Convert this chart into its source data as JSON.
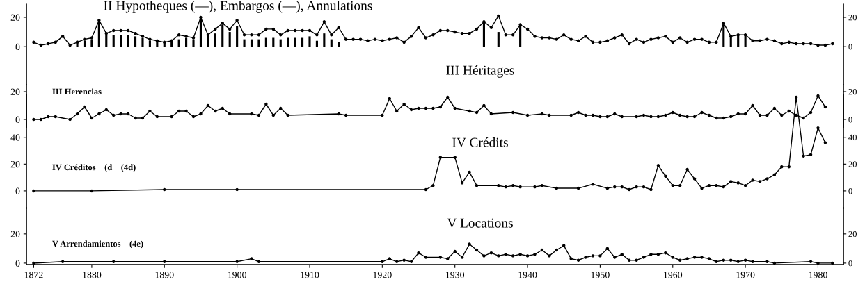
{
  "chart_data": [
    {
      "type": "line",
      "title": "II Hypotheques (—), Embargos (—), Annulations",
      "marker": "circle",
      "tick_labels": "y",
      "xlim": [
        1871,
        1983.5
      ],
      "xticks": [
        1872,
        1880,
        1890,
        1900,
        1910,
        1920,
        1930,
        1940,
        1950,
        1960,
        1970,
        1980
      ],
      "ylim": [
        -26,
        29
      ],
      "yticks": [
        0,
        20
      ],
      "y2lim": [
        -26,
        29
      ],
      "y2ticks": [
        0,
        20
      ],
      "series": [
        {
          "type": "line",
          "color": "#000000",
          "x": [
            1872,
            1873,
            1874,
            1875,
            1876,
            1877,
            1878,
            1879,
            1880,
            1881,
            1882,
            1883,
            1884,
            1885,
            1886,
            1887,
            1888,
            1889,
            1890,
            1891,
            1892,
            1893,
            1894,
            1895,
            1896,
            1897,
            1898,
            1899,
            1900,
            1901,
            1902,
            1903,
            1904,
            1905,
            1906,
            1907,
            1908,
            1909,
            1910,
            1911,
            1912,
            1913,
            1914,
            1915,
            1916,
            1917,
            1918,
            1919,
            1920,
            1921,
            1922,
            1923,
            1924,
            1925,
            1926,
            1927,
            1928,
            1929,
            1930,
            1931,
            1932,
            1933,
            1934,
            1935,
            1936,
            1937,
            1938,
            1939,
            1940,
            1941,
            1942,
            1943,
            1944,
            1945,
            1946,
            1947,
            1948,
            1949,
            1950,
            1951,
            1952,
            1953,
            1954,
            1955,
            1956,
            1957,
            1958,
            1959,
            1960,
            1961,
            1962,
            1963,
            1964,
            1965,
            1966,
            1967,
            1968,
            1969,
            1970,
            1971,
            1972,
            1973,
            1974,
            1975,
            1976,
            1977,
            1978,
            1979,
            1980,
            1981,
            1982
          ],
          "values": [
            3,
            1,
            2,
            3,
            7,
            1,
            3,
            5,
            6,
            18,
            9,
            11,
            11,
            11,
            9,
            7,
            5,
            4,
            3,
            4,
            8,
            7,
            6,
            20,
            8,
            12,
            16,
            12,
            18,
            8,
            8,
            8,
            12,
            12,
            8,
            11,
            11,
            11,
            11,
            8,
            17,
            8,
            13,
            5,
            5,
            5,
            4,
            5,
            4,
            5,
            6,
            3,
            7,
            13,
            6,
            8,
            11,
            11,
            10,
            9,
            9,
            12,
            17,
            13,
            21,
            8,
            8,
            15,
            12,
            7,
            6,
            6,
            5,
            8,
            5,
            4,
            7,
            3,
            3,
            4,
            6,
            8,
            2,
            5,
            3,
            5,
            6,
            7,
            3,
            6,
            3,
            5,
            5,
            3,
            3,
            16,
            7,
            8,
            8,
            4,
            4,
            5,
            4,
            2,
            3,
            2,
            2,
            2,
            1,
            1,
            2
          ]
        },
        {
          "type": "bar",
          "color": "#000000",
          "x": [
            1878,
            1879,
            1880,
            1881,
            1882,
            1883,
            1884,
            1885,
            1886,
            1887,
            1888,
            1889,
            1890,
            1891,
            1892,
            1893,
            1894,
            1895,
            1896,
            1897,
            1898,
            1899,
            1900,
            1901,
            1902,
            1903,
            1904,
            1905,
            1906,
            1907,
            1908,
            1909,
            1910,
            1911,
            1912,
            1913,
            1914,
            1934,
            1936,
            1939,
            1967,
            1968,
            1969,
            1970
          ],
          "values": [
            4,
            4,
            5,
            17,
            8,
            8,
            8,
            8,
            7,
            6,
            4,
            3,
            3,
            3,
            5,
            6,
            5,
            20,
            8,
            9,
            15,
            10,
            14,
            5,
            5,
            5,
            6,
            6,
            5,
            6,
            6,
            6,
            7,
            4,
            9,
            5,
            3,
            17,
            10,
            15,
            16,
            7,
            8,
            8
          ]
        }
      ]
    },
    {
      "type": "line",
      "title": "III Héritages",
      "subtitle": "III Herencias",
      "marker": "circle",
      "tick_labels": "y",
      "xlim": [
        1871,
        1983.5
      ],
      "xticks": [
        1872,
        1880,
        1890,
        1900,
        1910,
        1920,
        1930,
        1940,
        1950,
        1960,
        1970,
        1980
      ],
      "ylim": [
        -6,
        25
      ],
      "yticks": [
        0,
        20
      ],
      "y2lim": [
        -6,
        25
      ],
      "y2ticks": [
        0,
        20
      ],
      "series": [
        {
          "color": "#000000",
          "x": [
            1872,
            1873,
            1874,
            1875,
            1877,
            1878,
            1879,
            1880,
            1881,
            1882,
            1883,
            1884,
            1885,
            1886,
            1887,
            1888,
            1889,
            1891,
            1892,
            1893,
            1894,
            1895,
            1896,
            1897,
            1898,
            1899,
            1902,
            1903,
            1904,
            1905,
            1906,
            1907,
            1914,
            1915,
            1920,
            1921,
            1922,
            1923,
            1924,
            1925,
            1926,
            1927,
            1928,
            1929,
            1930,
            1932,
            1933,
            1934,
            1935,
            1938,
            1940,
            1942,
            1943,
            1946,
            1947,
            1948,
            1949,
            1950,
            1951,
            1952,
            1953,
            1955,
            1956,
            1957,
            1958,
            1959,
            1960,
            1961,
            1962,
            1963,
            1964,
            1965,
            1966,
            1967,
            1968,
            1969,
            1970,
            1971,
            1972,
            1973,
            1974,
            1975,
            1976,
            1977,
            1978,
            1979,
            1980,
            1981
          ],
          "values": [
            0,
            0,
            2,
            2,
            0,
            4,
            9,
            1,
            4,
            7,
            3,
            4,
            4,
            1,
            1,
            6,
            2,
            2,
            6,
            6,
            2,
            4,
            10,
            6,
            8,
            4,
            4,
            3,
            11,
            3,
            8,
            3,
            4,
            3,
            3,
            15,
            6,
            11,
            7,
            8,
            8,
            8,
            9,
            16,
            8,
            6,
            5,
            10,
            4,
            5,
            3,
            4,
            3,
            3,
            5,
            3,
            3,
            2,
            2,
            4,
            2,
            2,
            3,
            2,
            2,
            3,
            5,
            3,
            2,
            2,
            5,
            3,
            1,
            1,
            2,
            4,
            4,
            10,
            3,
            3,
            8,
            3,
            6,
            3,
            1,
            5,
            17,
            9
          ]
        }
      ]
    },
    {
      "type": "line",
      "title": "IV Crédits",
      "subtitle": "IV Créditos    (d    (4d)",
      "marker": "circle",
      "tick_labels": "y",
      "xlim": [
        1871,
        1983.5
      ],
      "xticks": [
        1872,
        1880,
        1890,
        1900,
        1910,
        1920,
        1930,
        1940,
        1950,
        1960,
        1970,
        1980
      ],
      "ylim": [
        -13,
        72
      ],
      "yticks": [
        0,
        20,
        40
      ],
      "y2lim": [
        -13,
        72
      ],
      "y2ticks": [
        0,
        20,
        40
      ],
      "series": [
        {
          "color": "#000000",
          "x": [
            1872,
            1880,
            1890,
            1900,
            1926,
            1927,
            1928,
            1930,
            1931,
            1932,
            1933,
            1936,
            1937,
            1938,
            1939,
            1941,
            1942,
            1944,
            1947,
            1949,
            1951,
            1952,
            1953,
            1954,
            1955,
            1956,
            1957,
            1958,
            1959,
            1960,
            1961,
            1962,
            1963,
            1964,
            1965,
            1966,
            1967,
            1968,
            1969,
            1970,
            1971,
            1972,
            1973,
            1974,
            1975,
            1976,
            1977,
            1978,
            1979,
            1980,
            1981
          ],
          "values": [
            0,
            0,
            1,
            1,
            1,
            4,
            25,
            25,
            6,
            14,
            4,
            4,
            3,
            4,
            3,
            3,
            4,
            2,
            2,
            5,
            2,
            3,
            3,
            1,
            3,
            3,
            1,
            19,
            11,
            4,
            4,
            16,
            9,
            2,
            4,
            4,
            3,
            7,
            6,
            4,
            8,
            7,
            9,
            12,
            18,
            18,
            70,
            26,
            27,
            47,
            36
          ]
        }
      ]
    },
    {
      "type": "line",
      "title": "V Locations",
      "subtitle": "V Arrendamientos    (4e)",
      "marker": "circle",
      "xlim": [
        1871,
        1983.5
      ],
      "xticks": [
        1872,
        1880,
        1890,
        1900,
        1910,
        1920,
        1930,
        1940,
        1950,
        1960,
        1970,
        1980
      ],
      "ylim": [
        -1,
        38
      ],
      "yticks": [
        0,
        20
      ],
      "y2lim": [
        -1,
        38
      ],
      "y2ticks": [
        0,
        20
      ],
      "series": [
        {
          "color": "#000000",
          "x": [
            1872,
            1876,
            1883,
            1890,
            1900,
            1902,
            1903,
            1920,
            1921,
            1922,
            1923,
            1924,
            1925,
            1926,
            1928,
            1929,
            1930,
            1931,
            1932,
            1933,
            1934,
            1935,
            1936,
            1937,
            1938,
            1939,
            1940,
            1941,
            1942,
            1943,
            1944,
            1945,
            1946,
            1947,
            1948,
            1949,
            1950,
            1951,
            1952,
            1953,
            1954,
            1955,
            1956,
            1957,
            1958,
            1959,
            1960,
            1961,
            1962,
            1963,
            1964,
            1965,
            1966,
            1967,
            1968,
            1969,
            1970,
            1971,
            1973,
            1974,
            1979,
            1980,
            1982
          ],
          "values": [
            0,
            1,
            1,
            1,
            1,
            3,
            1,
            1,
            3,
            1,
            2,
            1,
            7,
            4,
            4,
            3,
            8,
            4,
            13,
            9,
            5,
            7,
            5,
            6,
            5,
            6,
            5,
            6,
            9,
            5,
            9,
            12,
            3,
            2,
            4,
            5,
            5,
            10,
            4,
            6,
            2,
            2,
            4,
            6,
            6,
            7,
            4,
            2,
            3,
            4,
            4,
            3,
            1,
            2,
            2,
            1,
            2,
            1,
            1,
            0,
            1,
            0,
            0
          ]
        }
      ]
    }
  ]
}
